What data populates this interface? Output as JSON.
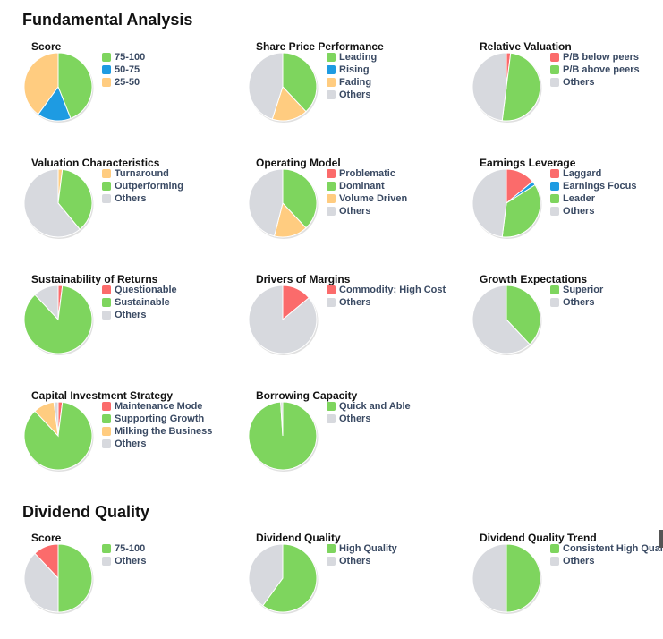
{
  "sections": [
    {
      "title": "Fundamental Analysis",
      "charts": [
        {
          "title": "Score",
          "chart_data": {
            "type": "pie",
            "title": "Score",
            "series": [
              {
                "name": "75-100",
                "value": 44,
                "color": "#7ed55e"
              },
              {
                "name": "50-75",
                "value": 16,
                "color": "#1e9be2"
              },
              {
                "name": "25-50",
                "value": 40,
                "color": "#ffcc80"
              }
            ]
          }
        },
        {
          "title": "Share Price Performance",
          "chart_data": {
            "type": "pie",
            "title": "Share Price Performance",
            "series": [
              {
                "name": "Leading",
                "value": 38,
                "color": "#7ed55e"
              },
              {
                "name": "Rising",
                "value": 0,
                "color": "#1e9be2"
              },
              {
                "name": "Fading",
                "value": 17,
                "color": "#ffcc80"
              },
              {
                "name": "Others",
                "value": 45,
                "color": "#d7d9de"
              }
            ]
          }
        },
        {
          "title": "Relative Valuation",
          "chart_data": {
            "type": "pie",
            "title": "Relative Valuation",
            "series": [
              {
                "name": "P/B below peers",
                "value": 2,
                "color": "#fb6b6b"
              },
              {
                "name": "P/B above peers",
                "value": 50,
                "color": "#7ed55e"
              },
              {
                "name": "Others",
                "value": 48,
                "color": "#d7d9de"
              }
            ]
          }
        },
        {
          "title": "Valuation Characteristics",
          "chart_data": {
            "type": "pie",
            "title": "Valuation Characteristics",
            "series": [
              {
                "name": "Turnaround",
                "value": 2,
                "color": "#ffcc80"
              },
              {
                "name": "Outperforming",
                "value": 37,
                "color": "#7ed55e"
              },
              {
                "name": "Others",
                "value": 61,
                "color": "#d7d9de"
              }
            ]
          }
        },
        {
          "title": "Operating Model",
          "chart_data": {
            "type": "pie",
            "title": "Operating Model",
            "series": [
              {
                "name": "Problematic",
                "value": 0,
                "color": "#fb6b6b"
              },
              {
                "name": "Dominant",
                "value": 38,
                "color": "#7ed55e"
              },
              {
                "name": "Volume Driven",
                "value": 16,
                "color": "#ffcc80"
              },
              {
                "name": "Others",
                "value": 46,
                "color": "#d7d9de"
              }
            ]
          }
        },
        {
          "title": "Earnings Leverage",
          "chart_data": {
            "type": "pie",
            "title": "Earnings Leverage",
            "series": [
              {
                "name": "Laggard",
                "value": 14,
                "color": "#fb6b6b"
              },
              {
                "name": "Earnings Focus",
                "value": 2,
                "color": "#1e9be2"
              },
              {
                "name": "Leader",
                "value": 36,
                "color": "#7ed55e"
              },
              {
                "name": "Others",
                "value": 48,
                "color": "#d7d9de"
              }
            ]
          }
        },
        {
          "title": "Sustainability of Returns",
          "chart_data": {
            "type": "pie",
            "title": "Sustainability of Returns",
            "series": [
              {
                "name": "Questionable",
                "value": 2,
                "color": "#fb6b6b"
              },
              {
                "name": "Sustainable",
                "value": 86,
                "color": "#7ed55e"
              },
              {
                "name": "Others",
                "value": 12,
                "color": "#d7d9de"
              }
            ]
          }
        },
        {
          "title": "Drivers of Margins",
          "chart_data": {
            "type": "pie",
            "title": "Drivers of Margins",
            "series": [
              {
                "name": "Commodity; High Cost",
                "value": 14,
                "color": "#fb6b6b"
              },
              {
                "name": "Others",
                "value": 86,
                "color": "#d7d9de"
              }
            ]
          }
        },
        {
          "title": "Growth Expectations",
          "chart_data": {
            "type": "pie",
            "title": "Growth Expectations",
            "series": [
              {
                "name": "Superior",
                "value": 38,
                "color": "#7ed55e"
              },
              {
                "name": "Others",
                "value": 62,
                "color": "#d7d9de"
              }
            ]
          }
        },
        {
          "title": "Capital Investment Strategy",
          "chart_data": {
            "type": "pie",
            "title": "Capital Investment Strategy",
            "series": [
              {
                "name": "Maintenance Mode",
                "value": 2,
                "color": "#fb6b6b"
              },
              {
                "name": "Supporting Growth",
                "value": 86,
                "color": "#7ed55e"
              },
              {
                "name": "Milking the Business",
                "value": 10,
                "color": "#ffcc80"
              },
              {
                "name": "Others",
                "value": 2,
                "color": "#d7d9de"
              }
            ]
          }
        },
        {
          "title": "Borrowing Capacity",
          "chart_data": {
            "type": "pie",
            "title": "Borrowing Capacity",
            "series": [
              {
                "name": "Quick and Able",
                "value": 99,
                "color": "#7ed55e"
              },
              {
                "name": "Others",
                "value": 1,
                "color": "#d7d9de"
              }
            ]
          }
        }
      ]
    },
    {
      "title": "Dividend Quality",
      "charts": [
        {
          "title": "Score",
          "chart_data": {
            "type": "pie",
            "title": "Score",
            "series": [
              {
                "name": "75-100",
                "value": 50,
                "color": "#7ed55e"
              },
              {
                "name": "Others",
                "value": 38,
                "color": "#d7d9de"
              },
              {
                "name": "",
                "value": 12,
                "color": "#fb6b6b"
              }
            ]
          }
        },
        {
          "title": "Dividend Quality",
          "chart_data": {
            "type": "pie",
            "title": "Dividend Quality",
            "series": [
              {
                "name": "High Quality",
                "value": 60,
                "color": "#7ed55e"
              },
              {
                "name": "Others",
                "value": 40,
                "color": "#d7d9de"
              }
            ]
          }
        },
        {
          "title": "Dividend Quality Trend",
          "chart_data": {
            "type": "pie",
            "title": "Dividend Quality Trend",
            "series": [
              {
                "name": "Consistent High Qual",
                "value": 50,
                "color": "#7ed55e"
              },
              {
                "name": "Others",
                "value": 50,
                "color": "#d7d9de"
              }
            ]
          }
        }
      ]
    }
  ]
}
